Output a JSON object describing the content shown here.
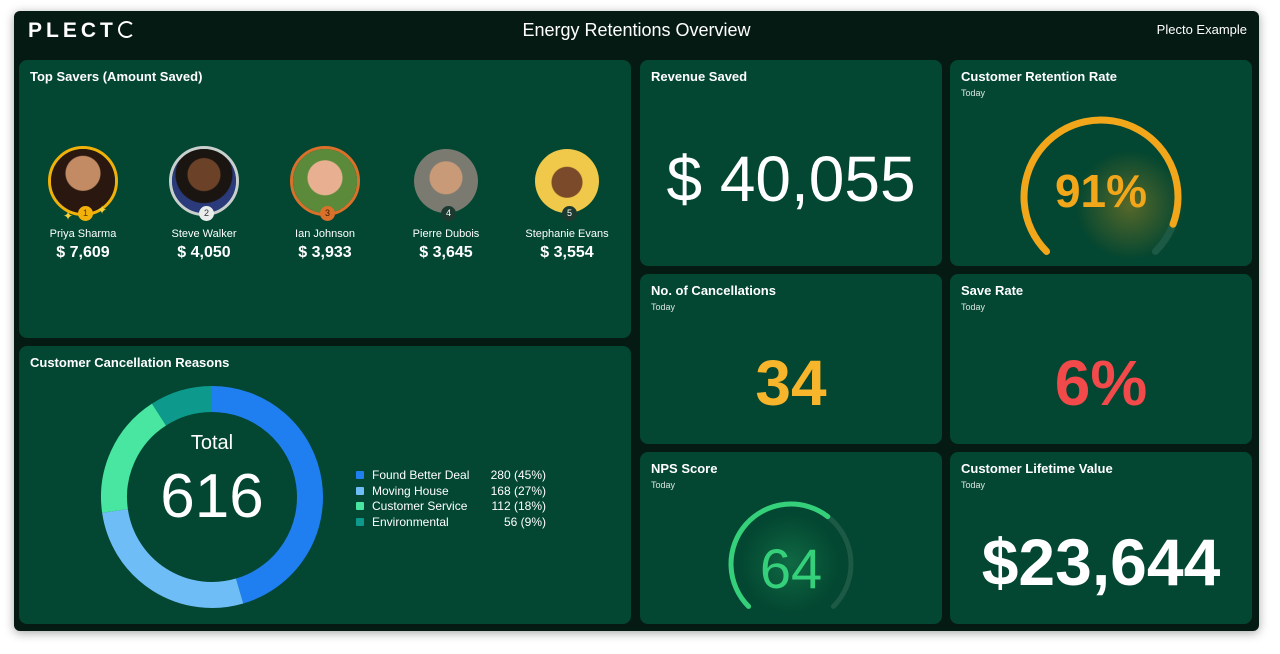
{
  "header": {
    "logo_text": "PLECT",
    "title": "Energy Retentions Overview",
    "account": "Plecto Example"
  },
  "top_savers": {
    "title": "Top Savers (Amount Saved)",
    "people": [
      {
        "rank": "1",
        "name": "Priya Sharma",
        "amount": "$ 7,609",
        "ring_color": "#f2b10a"
      },
      {
        "rank": "2",
        "name": "Steve Walker",
        "amount": "$ 4,050",
        "ring_color": "#c9cfcc"
      },
      {
        "rank": "3",
        "name": "Ian Johnson",
        "amount": "$ 3,933",
        "ring_color": "#d9712a"
      },
      {
        "rank": "4",
        "name": "Pierre Dubois",
        "amount": "$ 3,645",
        "ring_color": "#034631"
      },
      {
        "rank": "5",
        "name": "Stephanie Evans",
        "amount": "$ 3,554",
        "ring_color": "#034631"
      }
    ]
  },
  "cancellation_reasons": {
    "title": "Customer Cancellation Reasons",
    "total_label": "Total",
    "total_value": "616",
    "items": [
      {
        "label": "Found Better Deal",
        "value": "280 (45%)",
        "color": "#1f7ff0"
      },
      {
        "label": "Moving House",
        "value": "168 (27%)",
        "color": "#6fbdf7"
      },
      {
        "label": "Customer Service",
        "value": "112 (18%)",
        "color": "#48e6a1"
      },
      {
        "label": "Environmental",
        "value": "56 (9%)",
        "color": "#0d9a8c"
      }
    ]
  },
  "revenue_saved": {
    "title": "Revenue Saved",
    "value": "$ 40,055"
  },
  "retention_rate": {
    "title": "Customer Retention Rate",
    "subtitle": "Today",
    "value": "91%",
    "fraction": 0.91,
    "color": "#f2a71b"
  },
  "cancellations": {
    "title": "No. of Cancellations",
    "subtitle": "Today",
    "value": "34",
    "color": "#f7b52b"
  },
  "save_rate": {
    "title": "Save Rate",
    "subtitle": "Today",
    "value": "6%",
    "color": "#f2494a"
  },
  "nps": {
    "title": "NPS Score",
    "subtitle": "Today",
    "value": "64",
    "fraction": 0.64,
    "color": "#35d17a"
  },
  "lifetime_value": {
    "title": "Customer Lifetime Value",
    "subtitle": "Today",
    "value": "$23,644"
  },
  "chart_data": {
    "type": "pie",
    "title": "Customer Cancellation Reasons",
    "categories": [
      "Found Better Deal",
      "Moving House",
      "Customer Service",
      "Environmental"
    ],
    "values": [
      280,
      168,
      112,
      56
    ]
  }
}
